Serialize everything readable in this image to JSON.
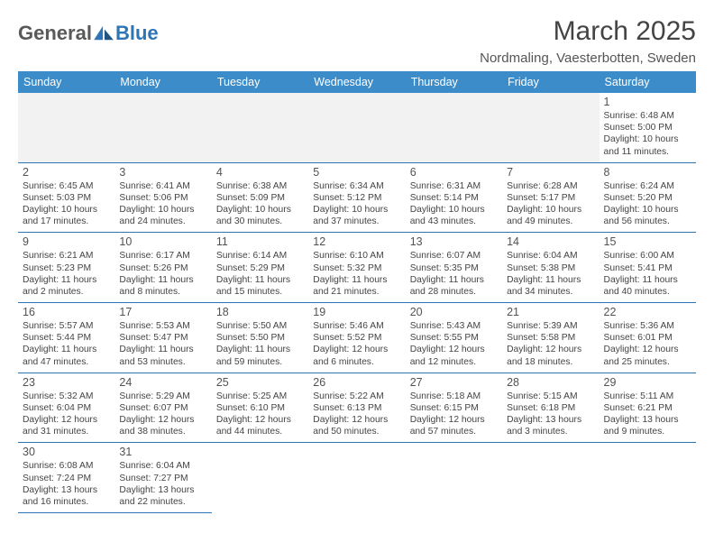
{
  "logo": {
    "part1": "General",
    "part2": "Blue"
  },
  "title": "March 2025",
  "location": "Nordmaling, Vaesterbotten, Sweden",
  "colors": {
    "accent": "#3b8cc9",
    "rule": "#2f75b5",
    "shade": "#f2f2f2"
  },
  "weekdays": [
    "Sunday",
    "Monday",
    "Tuesday",
    "Wednesday",
    "Thursday",
    "Friday",
    "Saturday"
  ],
  "days": [
    {
      "n": 1,
      "sr": "6:48 AM",
      "ss": "5:00 PM",
      "dl": "10 hours and 11 minutes."
    },
    {
      "n": 2,
      "sr": "6:45 AM",
      "ss": "5:03 PM",
      "dl": "10 hours and 17 minutes."
    },
    {
      "n": 3,
      "sr": "6:41 AM",
      "ss": "5:06 PM",
      "dl": "10 hours and 24 minutes."
    },
    {
      "n": 4,
      "sr": "6:38 AM",
      "ss": "5:09 PM",
      "dl": "10 hours and 30 minutes."
    },
    {
      "n": 5,
      "sr": "6:34 AM",
      "ss": "5:12 PM",
      "dl": "10 hours and 37 minutes."
    },
    {
      "n": 6,
      "sr": "6:31 AM",
      "ss": "5:14 PM",
      "dl": "10 hours and 43 minutes."
    },
    {
      "n": 7,
      "sr": "6:28 AM",
      "ss": "5:17 PM",
      "dl": "10 hours and 49 minutes."
    },
    {
      "n": 8,
      "sr": "6:24 AM",
      "ss": "5:20 PM",
      "dl": "10 hours and 56 minutes."
    },
    {
      "n": 9,
      "sr": "6:21 AM",
      "ss": "5:23 PM",
      "dl": "11 hours and 2 minutes."
    },
    {
      "n": 10,
      "sr": "6:17 AM",
      "ss": "5:26 PM",
      "dl": "11 hours and 8 minutes."
    },
    {
      "n": 11,
      "sr": "6:14 AM",
      "ss": "5:29 PM",
      "dl": "11 hours and 15 minutes."
    },
    {
      "n": 12,
      "sr": "6:10 AM",
      "ss": "5:32 PM",
      "dl": "11 hours and 21 minutes."
    },
    {
      "n": 13,
      "sr": "6:07 AM",
      "ss": "5:35 PM",
      "dl": "11 hours and 28 minutes."
    },
    {
      "n": 14,
      "sr": "6:04 AM",
      "ss": "5:38 PM",
      "dl": "11 hours and 34 minutes."
    },
    {
      "n": 15,
      "sr": "6:00 AM",
      "ss": "5:41 PM",
      "dl": "11 hours and 40 minutes."
    },
    {
      "n": 16,
      "sr": "5:57 AM",
      "ss": "5:44 PM",
      "dl": "11 hours and 47 minutes."
    },
    {
      "n": 17,
      "sr": "5:53 AM",
      "ss": "5:47 PM",
      "dl": "11 hours and 53 minutes."
    },
    {
      "n": 18,
      "sr": "5:50 AM",
      "ss": "5:50 PM",
      "dl": "11 hours and 59 minutes."
    },
    {
      "n": 19,
      "sr": "5:46 AM",
      "ss": "5:52 PM",
      "dl": "12 hours and 6 minutes."
    },
    {
      "n": 20,
      "sr": "5:43 AM",
      "ss": "5:55 PM",
      "dl": "12 hours and 12 minutes."
    },
    {
      "n": 21,
      "sr": "5:39 AM",
      "ss": "5:58 PM",
      "dl": "12 hours and 18 minutes."
    },
    {
      "n": 22,
      "sr": "5:36 AM",
      "ss": "6:01 PM",
      "dl": "12 hours and 25 minutes."
    },
    {
      "n": 23,
      "sr": "5:32 AM",
      "ss": "6:04 PM",
      "dl": "12 hours and 31 minutes."
    },
    {
      "n": 24,
      "sr": "5:29 AM",
      "ss": "6:07 PM",
      "dl": "12 hours and 38 minutes."
    },
    {
      "n": 25,
      "sr": "5:25 AM",
      "ss": "6:10 PM",
      "dl": "12 hours and 44 minutes."
    },
    {
      "n": 26,
      "sr": "5:22 AM",
      "ss": "6:13 PM",
      "dl": "12 hours and 50 minutes."
    },
    {
      "n": 27,
      "sr": "5:18 AM",
      "ss": "6:15 PM",
      "dl": "12 hours and 57 minutes."
    },
    {
      "n": 28,
      "sr": "5:15 AM",
      "ss": "6:18 PM",
      "dl": "13 hours and 3 minutes."
    },
    {
      "n": 29,
      "sr": "5:11 AM",
      "ss": "6:21 PM",
      "dl": "13 hours and 9 minutes."
    },
    {
      "n": 30,
      "sr": "6:08 AM",
      "ss": "7:24 PM",
      "dl": "13 hours and 16 minutes."
    },
    {
      "n": 31,
      "sr": "6:04 AM",
      "ss": "7:27 PM",
      "dl": "13 hours and 22 minutes."
    }
  ],
  "labels": {
    "sunrise": "Sunrise:",
    "sunset": "Sunset:",
    "daylight": "Daylight:"
  },
  "layout": {
    "startOffset": 6,
    "rows": 6,
    "cols": 7
  }
}
